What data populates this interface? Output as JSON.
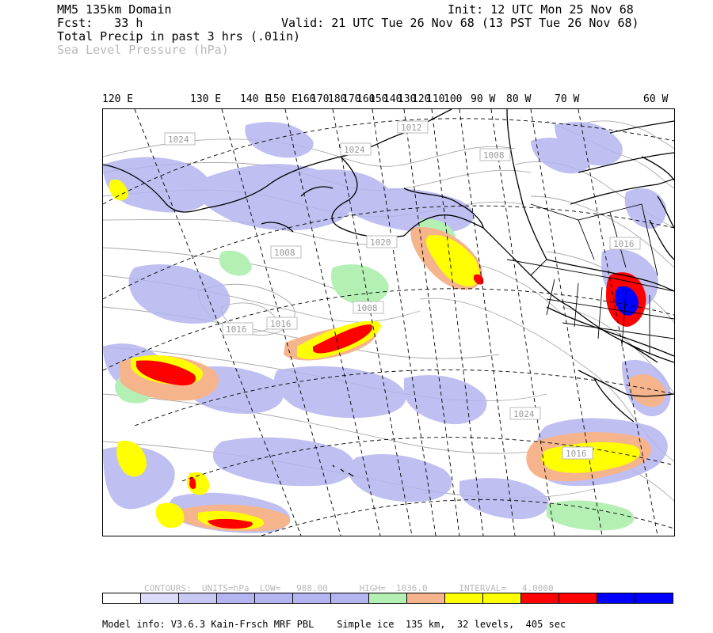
{
  "header": {
    "domain": "MM5 135km Domain",
    "fcst": "Fcst:   33 h",
    "init": "Init: 12 UTC Mon 25 Nov 68",
    "valid": "Valid: 21 UTC Tue 26 Nov 68 (13 PST Tue 26 Nov 68)",
    "field1": "Total Precip in past 3 hrs (.01in)",
    "field2": "Sea Level Pressure (hPa)"
  },
  "lon_labels": [
    "120 E",
    "130 E",
    "140 E",
    "150 E",
    "160",
    "170",
    "180",
    "170",
    "160",
    "150",
    "140",
    "130",
    "120",
    "110",
    "100",
    "90 W",
    "80 W",
    "70 W",
    "60 W"
  ],
  "isobar_labels": [
    "1024",
    "1024",
    "1012",
    "1008",
    "1008",
    "1020",
    "1016",
    "1008",
    "1016",
    "1024",
    "1016",
    "1016"
  ],
  "contour_info": {
    "contours": "CONTOURS:",
    "units": "UNITS=hPa",
    "low": "LOW=   988.00",
    "high": "HIGH=  1036.0",
    "interval": "INTERVAL=   4.0000"
  },
  "colorbar": [
    "#ffffff",
    "#dcdcfa",
    "#c8c8f5",
    "#b4b4f0",
    "#b4b4f0",
    "#b4b4f0",
    "#b4b4f0",
    "#b4f0b4",
    "#f5b48c",
    "#ffff00",
    "#ffff00",
    "#ff0000",
    "#ff0000",
    "#0000ff",
    "#0000ff"
  ],
  "footer": "Model info: V3.6.3 Kain-Frsch MRF PBL    Simple ice  135 km,  32 levels,  405 sec"
}
